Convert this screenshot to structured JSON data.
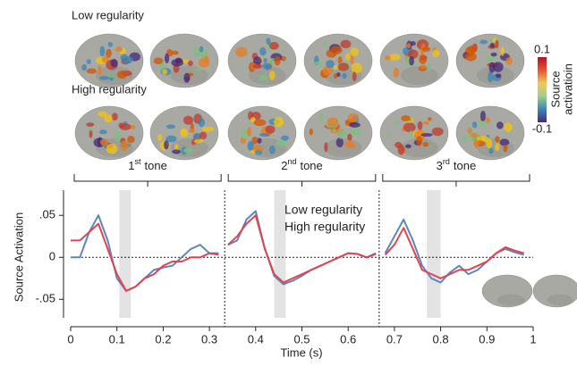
{
  "chart_data": {
    "type": "line",
    "panel_labels": [
      "Low regularity",
      "High regularity"
    ],
    "colorbar": {
      "max_label": "0.1",
      "min_label": "-0.1",
      "title": [
        "Source",
        "activatioin"
      ]
    },
    "tone_labels": [
      {
        "number": "1",
        "suffix": "st",
        "word": "tone"
      },
      {
        "number": "2",
        "suffix": "nd",
        "word": "tone"
      },
      {
        "number": "3",
        "suffix": "rd",
        "word": "tone"
      }
    ],
    "xlabel": "Time (s)",
    "ylabel": "Source Activation",
    "xlim": [
      0,
      1
    ],
    "ylim": [
      -0.072,
      0.08
    ],
    "xticks": [
      0,
      0.1,
      0.2,
      0.3,
      0.4,
      0.5,
      0.6,
      0.7,
      0.8,
      0.9,
      1
    ],
    "yticks": [
      {
        "value": 0.05,
        "label": ".05"
      },
      0,
      {
        "value": -0.05,
        "label": "-.05"
      }
    ],
    "shaded_windows": [
      [
        0.105,
        0.13
      ],
      [
        0.44,
        0.465
      ],
      [
        0.77,
        0.8
      ]
    ],
    "tone_boundaries": [
      0.333,
      0.667
    ],
    "baseline": 0,
    "x": [
      0,
      0.02,
      0.04,
      0.06,
      0.08,
      0.1,
      0.12,
      0.14,
      0.16,
      0.18,
      0.2,
      0.22,
      0.24,
      0.26,
      0.28,
      0.3,
      0.32,
      0.333,
      0.34,
      0.36,
      0.38,
      0.4,
      0.42,
      0.44,
      0.46,
      0.48,
      0.5,
      0.52,
      0.54,
      0.56,
      0.58,
      0.6,
      0.62,
      0.64,
      0.66,
      0.667,
      0.68,
      0.7,
      0.72,
      0.74,
      0.76,
      0.78,
      0.8,
      0.82,
      0.84,
      0.86,
      0.88,
      0.9,
      0.92,
      0.94,
      0.96,
      0.98
    ],
    "series": [
      {
        "name": "Low regularity",
        "color": "#5b87bd",
        "values": [
          0,
          0,
          0.03,
          0.05,
          0.02,
          -0.025,
          -0.04,
          -0.035,
          -0.025,
          -0.015,
          -0.012,
          -0.01,
          0,
          0.01,
          0.015,
          0.005,
          0.005,
          null,
          0.015,
          0.02,
          0.045,
          0.055,
          0.01,
          -0.022,
          -0.032,
          -0.028,
          -0.022,
          -0.015,
          -0.01,
          -0.005,
          0,
          0.005,
          0.004,
          0,
          0.005,
          null,
          0.005,
          0.025,
          0.045,
          0.02,
          -0.01,
          -0.025,
          -0.03,
          -0.018,
          -0.01,
          -0.02,
          -0.015,
          -0.005,
          0.005,
          0.01,
          0.006,
          0.003
        ]
      },
      {
        "name": "High regularity",
        "color": "#e5424f",
        "values": [
          0.02,
          0.02,
          0.03,
          0.04,
          0.01,
          -0.02,
          -0.04,
          -0.035,
          -0.025,
          -0.02,
          -0.01,
          -0.005,
          -0.005,
          0,
          0,
          0.005,
          0.003,
          null,
          0.015,
          0.025,
          0.04,
          0.05,
          0.01,
          -0.02,
          -0.03,
          -0.025,
          -0.02,
          -0.015,
          -0.01,
          -0.005,
          0,
          0.005,
          0.004,
          0,
          0.004,
          null,
          0.003,
          0.015,
          0.035,
          0.01,
          -0.015,
          -0.02,
          -0.025,
          -0.02,
          -0.015,
          -0.015,
          -0.01,
          -0.005,
          0.005,
          0.012,
          0.008,
          0.005
        ]
      }
    ]
  }
}
